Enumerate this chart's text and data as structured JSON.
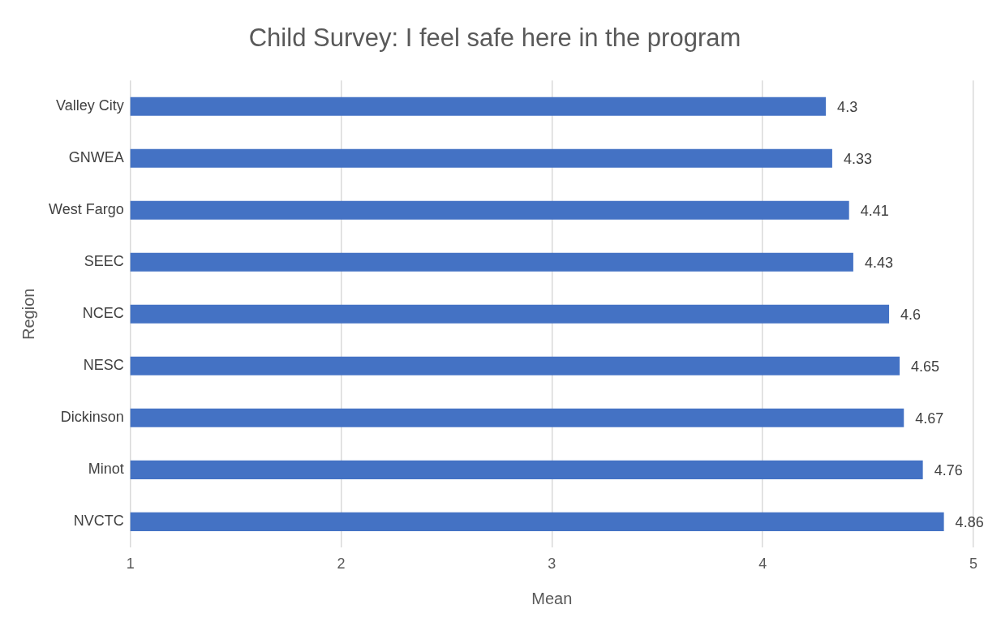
{
  "chart_data": {
    "type": "bar",
    "orientation": "horizontal",
    "title": "Child Survey: I feel safe here in the program",
    "xlabel": "Mean",
    "ylabel": "Region",
    "categories": [
      "Valley City",
      "GNWEA",
      "West Fargo",
      "SEEC",
      "NCEC",
      "NESC",
      "Dickinson",
      "Minot",
      "NVCTC"
    ],
    "values": [
      4.3,
      4.33,
      4.41,
      4.43,
      4.6,
      4.65,
      4.67,
      4.76,
      4.86
    ],
    "color": "#4472c4",
    "xlim": [
      1,
      5
    ],
    "xticks": [
      1,
      2,
      3,
      4,
      5
    ],
    "grid": "x",
    "data_labels": true,
    "legend": false
  }
}
